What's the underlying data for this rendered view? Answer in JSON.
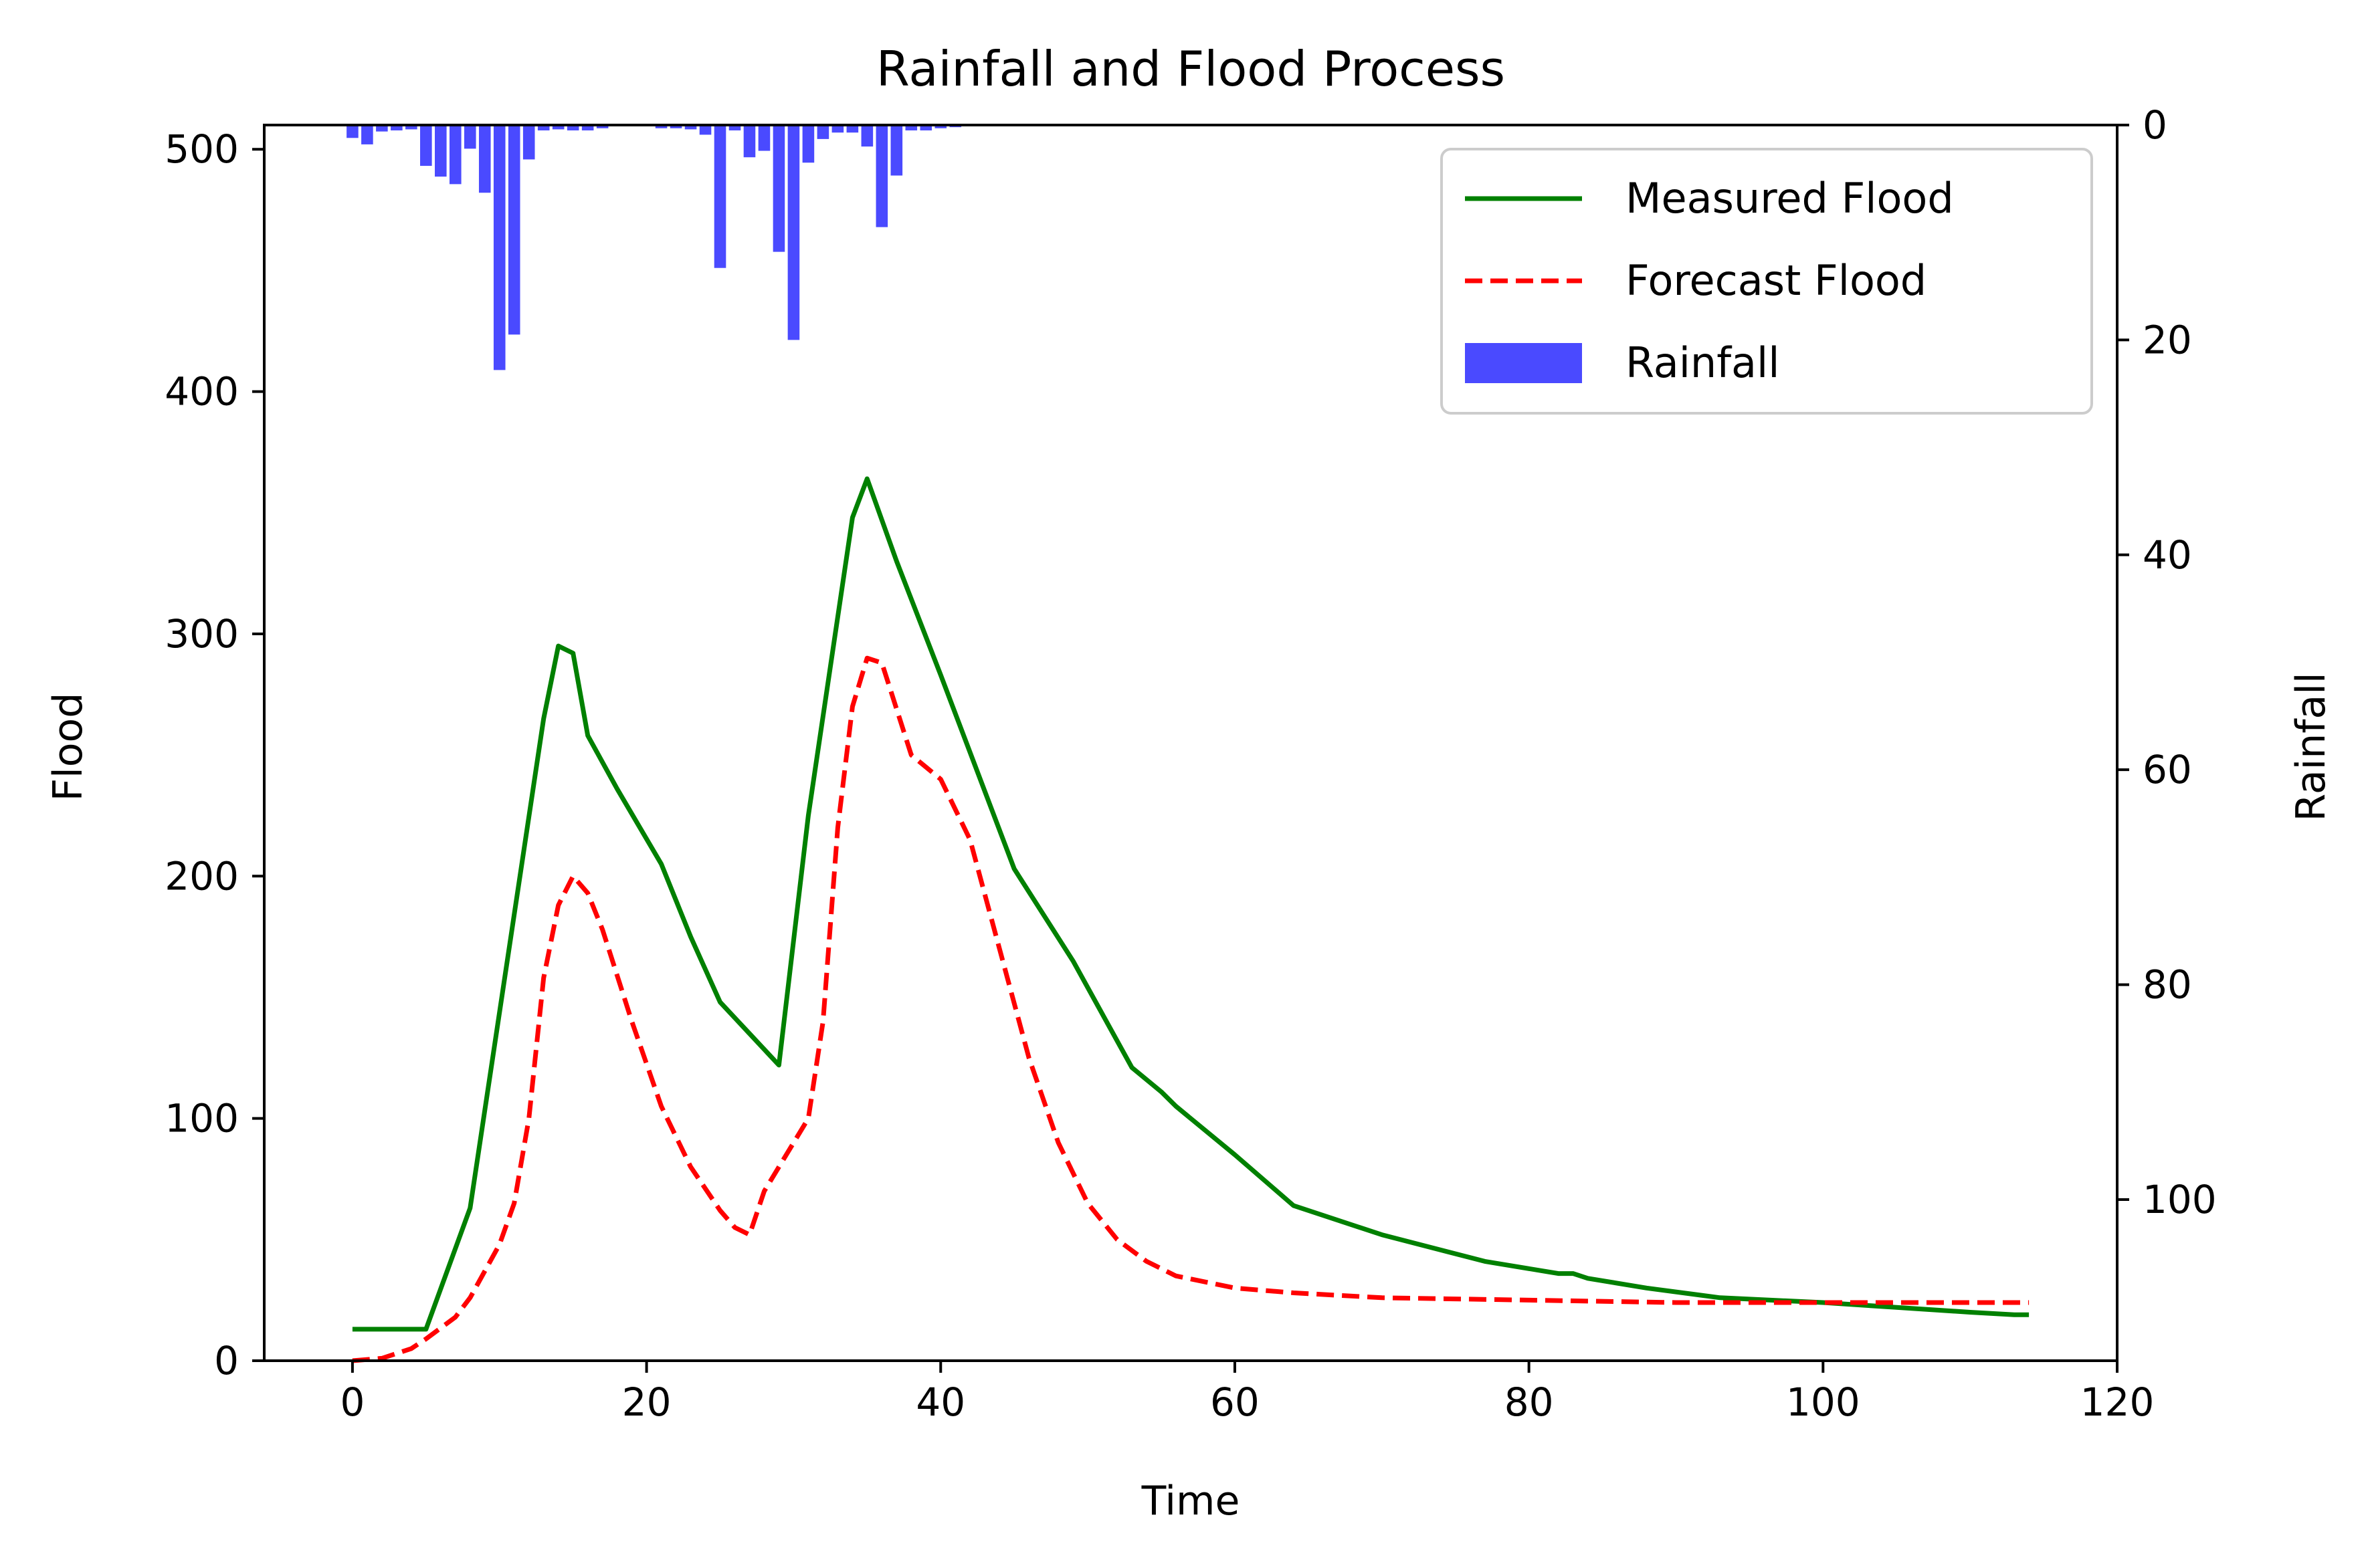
{
  "chart_data": {
    "type": "bar+line",
    "title": "Rainfall and Flood Process",
    "xlabel": "Time",
    "ylabel": "Flood",
    "y2label": "Rainfall",
    "xlim": [
      -6,
      120
    ],
    "ylim": [
      0,
      510
    ],
    "y2lim": [
      0,
      115
    ],
    "y2_inverted": true,
    "x_ticks": [
      0,
      20,
      40,
      60,
      80,
      100,
      120
    ],
    "y_ticks": [
      0,
      100,
      200,
      300,
      400,
      500
    ],
    "y2_ticks": [
      0,
      20,
      40,
      60,
      80,
      100
    ],
    "grid": false,
    "legend_position": "top-right",
    "series": [
      {
        "name": "Measured Flood",
        "kind": "line",
        "color": "#008000",
        "style": "solid",
        "points": [
          [
            0,
            13
          ],
          [
            5,
            13
          ],
          [
            8,
            63
          ],
          [
            13,
            265
          ],
          [
            14,
            295
          ],
          [
            15,
            292
          ],
          [
            16,
            258
          ],
          [
            18,
            236
          ],
          [
            21,
            205
          ],
          [
            23,
            175
          ],
          [
            25,
            148
          ],
          [
            27,
            135
          ],
          [
            29,
            122
          ],
          [
            31,
            225
          ],
          [
            34,
            348
          ],
          [
            35,
            364
          ],
          [
            37,
            330
          ],
          [
            40,
            283
          ],
          [
            45,
            203
          ],
          [
            49,
            165
          ],
          [
            53,
            121
          ],
          [
            55,
            111
          ],
          [
            56,
            105
          ],
          [
            60,
            85
          ],
          [
            64,
            64
          ],
          [
            70,
            52
          ],
          [
            77,
            41
          ],
          [
            82,
            36
          ],
          [
            83,
            36
          ],
          [
            84,
            34
          ],
          [
            88,
            30
          ],
          [
            93,
            26
          ],
          [
            100,
            24
          ],
          [
            105,
            22
          ],
          [
            110,
            20
          ],
          [
            113,
            19
          ],
          [
            114,
            19
          ]
        ]
      },
      {
        "name": "Forecast Flood",
        "kind": "line",
        "color": "#ff0000",
        "style": "dashed",
        "points": [
          [
            0,
            0
          ],
          [
            2,
            1
          ],
          [
            4,
            5
          ],
          [
            5,
            9
          ],
          [
            7,
            18
          ],
          [
            8,
            26
          ],
          [
            10,
            48
          ],
          [
            11,
            65
          ],
          [
            12,
            100
          ],
          [
            13,
            158
          ],
          [
            14,
            188
          ],
          [
            15,
            200
          ],
          [
            16,
            193
          ],
          [
            17,
            178
          ],
          [
            19,
            140
          ],
          [
            21,
            105
          ],
          [
            23,
            80
          ],
          [
            25,
            62
          ],
          [
            26,
            55
          ],
          [
            27,
            52
          ],
          [
            28,
            70
          ],
          [
            30,
            90
          ],
          [
            31,
            100
          ],
          [
            32,
            140
          ],
          [
            33,
            220
          ],
          [
            34,
            270
          ],
          [
            35,
            290
          ],
          [
            36,
            288
          ],
          [
            38,
            250
          ],
          [
            40,
            240
          ],
          [
            42,
            215
          ],
          [
            44,
            170
          ],
          [
            46,
            125
          ],
          [
            48,
            90
          ],
          [
            50,
            65
          ],
          [
            52,
            50
          ],
          [
            54,
            41
          ],
          [
            56,
            35
          ],
          [
            60,
            30
          ],
          [
            64,
            28
          ],
          [
            70,
            26
          ],
          [
            80,
            25
          ],
          [
            90,
            24
          ],
          [
            100,
            24
          ],
          [
            110,
            24
          ],
          [
            114,
            24
          ]
        ]
      },
      {
        "name": "Rainfall",
        "kind": "bar",
        "axis": "right",
        "color": "#4a4aff",
        "x": [
          0,
          1,
          2,
          3,
          4,
          5,
          6,
          7,
          8,
          9,
          10,
          11,
          12,
          13,
          14,
          15,
          16,
          17,
          18,
          19,
          20,
          21,
          22,
          23,
          24,
          25,
          26,
          27,
          28,
          29,
          30,
          31,
          32,
          33,
          34,
          35,
          36,
          37,
          38,
          39,
          40,
          41
        ],
        "values": [
          1.2,
          1.8,
          0.6,
          0.5,
          0.4,
          3.8,
          4.8,
          5.5,
          2.2,
          6.3,
          22.8,
          19.5,
          3.2,
          0.5,
          0.4,
          0.5,
          0.5,
          0.3,
          0.1,
          0.1,
          0.1,
          0.3,
          0.3,
          0.4,
          0.9,
          13.3,
          0.5,
          3.0,
          2.4,
          11.8,
          20.0,
          3.5,
          1.3,
          0.7,
          0.7,
          2.0,
          9.5,
          4.7,
          0.5,
          0.5,
          0.3,
          0.2
        ]
      }
    ]
  }
}
